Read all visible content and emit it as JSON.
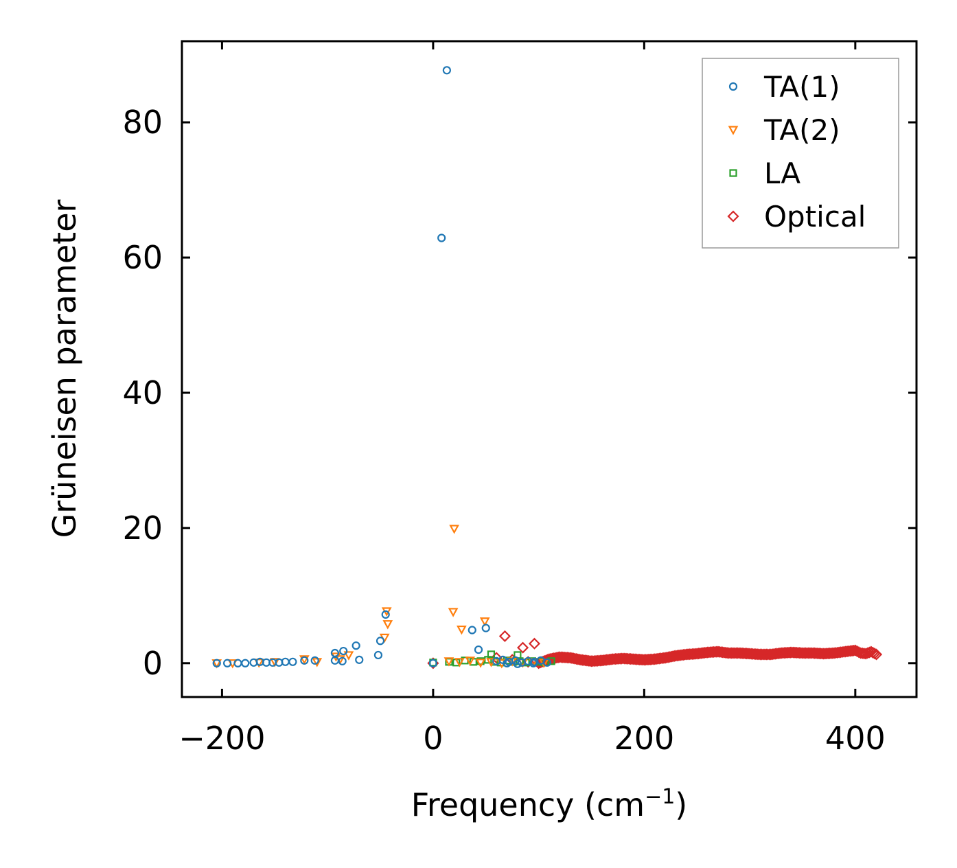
{
  "chart_data": {
    "type": "scatter",
    "title": "",
    "xlabel": "Frequency (cm",
    "xlabel_sup": "−1",
    "xlabel_close": ")",
    "ylabel": "Grüneisen parameter",
    "xlim": [
      -238,
      458
    ],
    "ylim": [
      -5,
      92
    ],
    "xticks": [
      -200,
      0,
      200,
      400
    ],
    "xtick_labels": [
      "−200",
      "0",
      "200",
      "400"
    ],
    "yticks": [
      0,
      20,
      40,
      60,
      80
    ],
    "ytick_labels": [
      "0",
      "20",
      "40",
      "60",
      "80"
    ],
    "grid": false,
    "legend_position": "top-right",
    "series": [
      {
        "name": "TA(1)",
        "marker": "circle",
        "color": "#1f77b4",
        "points": [
          [
            13,
            87.7
          ],
          [
            8,
            62.9
          ],
          [
            -45,
            7.2
          ],
          [
            -50,
            3.3
          ],
          [
            -73,
            2.6
          ],
          [
            -52,
            1.2
          ],
          [
            -85,
            1.8
          ],
          [
            -93,
            1.5
          ],
          [
            -70,
            0.5
          ],
          [
            -93,
            0.4
          ],
          [
            -86,
            0.3
          ],
          [
            -112,
            0.4
          ],
          [
            -122,
            0.4
          ],
          [
            -133,
            0.2
          ],
          [
            -140,
            0.2
          ],
          [
            -146,
            0.1
          ],
          [
            -152,
            0.1
          ],
          [
            -158,
            0.1
          ],
          [
            -164,
            0.2
          ],
          [
            -170,
            0.1
          ],
          [
            -178,
            0.0
          ],
          [
            -185,
            0.0
          ],
          [
            -195,
            0.0
          ],
          [
            -205,
            0.0
          ],
          [
            37,
            4.9
          ],
          [
            50,
            5.2
          ],
          [
            43,
            2.0
          ],
          [
            0,
            0.0
          ],
          [
            60,
            0.3
          ],
          [
            66,
            0.5
          ],
          [
            72,
            0.2
          ],
          [
            78,
            0.4
          ],
          [
            84,
            0.1
          ],
          [
            90,
            0.3
          ],
          [
            96,
            0.2
          ],
          [
            102,
            0.4
          ],
          [
            108,
            0.1
          ],
          [
            70,
            0.0
          ],
          [
            80,
            -0.1
          ],
          [
            95,
            0.0
          ]
        ]
      },
      {
        "name": "TA(2)",
        "marker": "triangle-down",
        "color": "#ff7f0e",
        "points": [
          [
            20,
            19.9
          ],
          [
            19,
            7.6
          ],
          [
            49,
            6.2
          ],
          [
            -44,
            7.7
          ],
          [
            -43,
            5.8
          ],
          [
            -46,
            3.8
          ],
          [
            27,
            5.0
          ],
          [
            -80,
            1.2
          ],
          [
            -92,
            1.0
          ],
          [
            -88,
            0.6
          ],
          [
            -110,
            0.2
          ],
          [
            -122,
            0.6
          ],
          [
            -150,
            0.2
          ],
          [
            -165,
            0.1
          ],
          [
            -190,
            0.0
          ],
          [
            -205,
            0.0
          ],
          [
            15,
            0.3
          ],
          [
            25,
            0.2
          ],
          [
            35,
            0.4
          ],
          [
            45,
            0.1
          ],
          [
            55,
            0.2
          ],
          [
            65,
            0.0
          ],
          [
            75,
            0.3
          ],
          [
            85,
            0.1
          ],
          [
            95,
            0.2
          ],
          [
            105,
            0.1
          ]
        ]
      },
      {
        "name": "LA",
        "marker": "square",
        "color": "#2ca02c",
        "points": [
          [
            0,
            0.1
          ],
          [
            15,
            0.2
          ],
          [
            22,
            0.1
          ],
          [
            30,
            0.4
          ],
          [
            38,
            0.2
          ],
          [
            45,
            0.3
          ],
          [
            52,
            0.5
          ],
          [
            58,
            0.2
          ],
          [
            64,
            0.1
          ],
          [
            70,
            0.4
          ],
          [
            76,
            0.2
          ],
          [
            82,
            0.3
          ],
          [
            88,
            0.1
          ],
          [
            94,
            0.3
          ],
          [
            100,
            0.2
          ],
          [
            106,
            0.1
          ],
          [
            112,
            0.3
          ],
          [
            55,
            1.3
          ],
          [
            80,
            1.2
          ]
        ]
      },
      {
        "name": "Optical",
        "marker": "diamond",
        "color": "#d62728",
        "points": [
          [
            0,
            0.0
          ],
          [
            68,
            4.0
          ],
          [
            96,
            2.9
          ],
          [
            85,
            2.3
          ],
          [
            60,
            0.8
          ],
          [
            75,
            0.5
          ],
          [
            90,
            0.2
          ],
          [
            100,
            0.0
          ],
          [
            110,
            0.6
          ],
          [
            120,
            0.9
          ],
          [
            130,
            0.8
          ],
          [
            140,
            0.5
          ],
          [
            150,
            0.3
          ],
          [
            160,
            0.4
          ],
          [
            170,
            0.6
          ],
          [
            180,
            0.7
          ],
          [
            190,
            0.6
          ],
          [
            200,
            0.5
          ],
          [
            210,
            0.6
          ],
          [
            220,
            0.8
          ],
          [
            230,
            1.1
          ],
          [
            240,
            1.3
          ],
          [
            250,
            1.4
          ],
          [
            260,
            1.6
          ],
          [
            270,
            1.7
          ],
          [
            280,
            1.5
          ],
          [
            290,
            1.5
          ],
          [
            300,
            1.4
          ],
          [
            310,
            1.3
          ],
          [
            320,
            1.3
          ],
          [
            330,
            1.5
          ],
          [
            340,
            1.6
          ],
          [
            350,
            1.5
          ],
          [
            360,
            1.5
          ],
          [
            370,
            1.4
          ],
          [
            380,
            1.5
          ],
          [
            400,
            1.9
          ],
          [
            405,
            1.5
          ],
          [
            410,
            1.4
          ],
          [
            415,
            1.7
          ],
          [
            420,
            1.3
          ]
        ]
      }
    ]
  }
}
